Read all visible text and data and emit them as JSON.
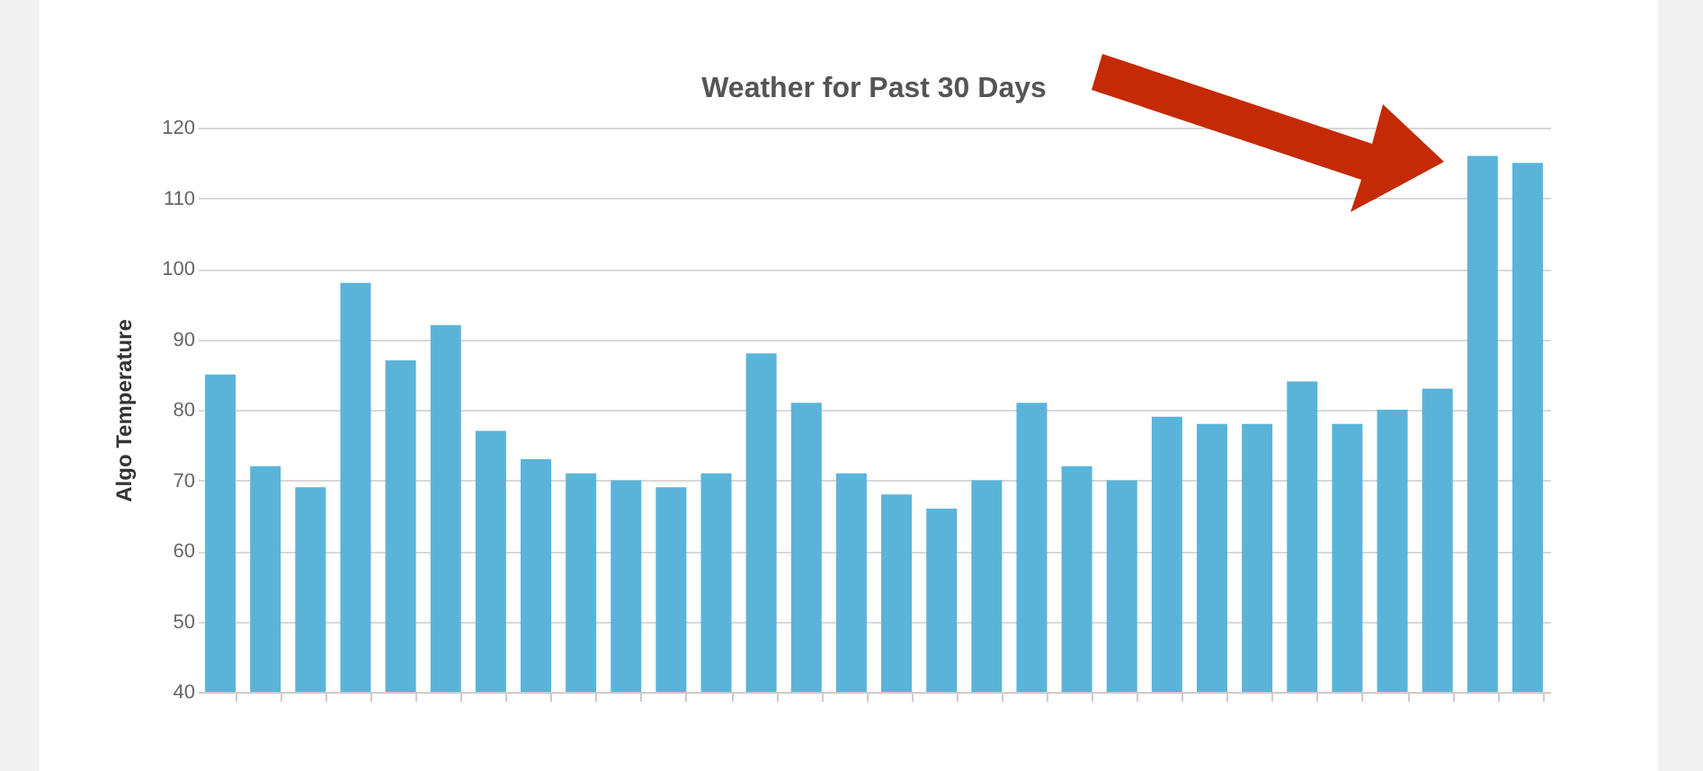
{
  "chart_data": {
    "type": "bar",
    "title": "Weather for Past 30 Days",
    "ylabel": "Algo Temperature",
    "categories": [
      null,
      null,
      null,
      null,
      null,
      null,
      null,
      null,
      null,
      null,
      null,
      null,
      null,
      null,
      null,
      null,
      null,
      null,
      null,
      null,
      null,
      null,
      null,
      null,
      null,
      null,
      null,
      null,
      null,
      null
    ],
    "values": [
      85,
      72,
      69,
      98,
      87,
      92,
      77,
      73,
      71,
      70,
      69,
      71,
      88,
      81,
      71,
      68,
      66,
      70,
      81,
      72,
      70,
      79,
      78,
      78,
      84,
      78,
      80,
      83,
      116,
      115
    ],
    "color": "#5ab4da",
    "ylim": [
      40,
      120
    ],
    "yticks": [
      40,
      50,
      60,
      70,
      80,
      90,
      100,
      110,
      120
    ],
    "grid": "y"
  }
}
